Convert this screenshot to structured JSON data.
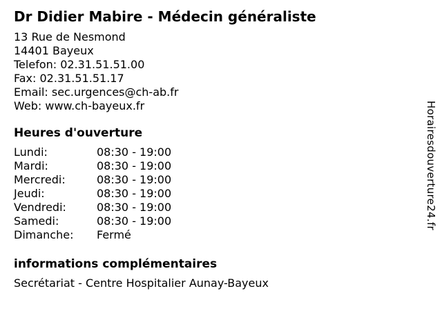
{
  "page_title": "Dr Didier Mabire - Médecin généraliste",
  "contact": {
    "street": "13 Rue de Nesmond",
    "city": "14401 Bayeux",
    "phone_label": "Telefon:",
    "phone_value": "02.31.51.51.00",
    "fax_label": "Fax:",
    "fax_value": "02.31.51.51.17",
    "email_label": "Email:",
    "email_value": "sec.urgences@ch-ab.fr",
    "web_label": "Web:",
    "web_value": "www.ch-bayeux.fr"
  },
  "opening_hours": {
    "heading": "Heures d'ouverture",
    "rows": [
      {
        "day": "Lundi:",
        "time": "08:30 - 19:00"
      },
      {
        "day": "Mardi:",
        "time": "08:30 - 19:00"
      },
      {
        "day": "Mercredi:",
        "time": "08:30 - 19:00"
      },
      {
        "day": "Jeudi:",
        "time": "08:30 - 19:00"
      },
      {
        "day": "Vendredi:",
        "time": "08:30 - 19:00"
      },
      {
        "day": "Samedi:",
        "time": "08:30 - 19:00"
      },
      {
        "day": "Dimanche:",
        "time": "Fermé"
      }
    ]
  },
  "additional_info": {
    "heading": "informations complémentaires",
    "text": "Secrétariat - Centre Hospitalier Aunay-Bayeux"
  },
  "watermark": "Horairesdouverture24.fr",
  "colors": {
    "text": "#000000",
    "background": "#ffffff"
  }
}
